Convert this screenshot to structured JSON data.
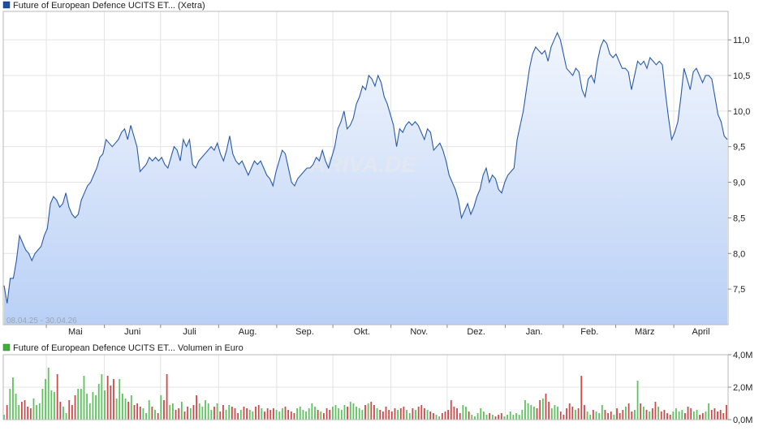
{
  "price_chart": {
    "legend": {
      "label": "Future of European Defence UCITS ET... (Xetra)",
      "color": "#1f4e9a"
    },
    "date_range": "08.04.25 - 30.04.26",
    "watermark": "ARIVA.DE",
    "y_ticks": [
      "11,0",
      "10,5",
      "10,0",
      "9,5",
      "9,0",
      "8,5",
      "8,0",
      "7,5"
    ],
    "x_ticks": [
      "Mai",
      "Juni",
      "Juli",
      "Aug.",
      "Sep.",
      "Okt.",
      "Nov.",
      "Dez.",
      "Jan.",
      "Feb.",
      "März",
      "April"
    ]
  },
  "volume_chart": {
    "legend": {
      "label": "Future of European Defence UCITS ET... Volumen in Euro",
      "color": "#3fae3f"
    },
    "y_ticks": [
      "4,0M",
      "2,0M",
      "0,0M"
    ]
  },
  "chart_data": [
    {
      "type": "area",
      "ylabel": "",
      "xlabel": "",
      "ylim": [
        7.0,
        11.4
      ],
      "x_range": [
        "2025-04-08",
        "2026-04-30"
      ],
      "grid": true,
      "series": [
        {
          "values": [
            7.55,
            7.3,
            7.65,
            7.65,
            7.9,
            8.25,
            8.15,
            8.05,
            8.0,
            7.9,
            8.0,
            8.05,
            8.1,
            8.25,
            8.35,
            8.7,
            8.8,
            8.75,
            8.65,
            8.7,
            8.85,
            8.65,
            8.55,
            8.5,
            8.55,
            8.75,
            8.85,
            8.95,
            9.0,
            9.1,
            9.2,
            9.35,
            9.4,
            9.6,
            9.55,
            9.5,
            9.55,
            9.6,
            9.7,
            9.75,
            9.6,
            9.8,
            9.65,
            9.5,
            9.15,
            9.2,
            9.25,
            9.35,
            9.3,
            9.35,
            9.3,
            9.35,
            9.25,
            9.2,
            9.35,
            9.5,
            9.45,
            9.3,
            9.6,
            9.5,
            9.6,
            9.25,
            9.2,
            9.3,
            9.35,
            9.4,
            9.45,
            9.5,
            9.45,
            9.55,
            9.4,
            9.3,
            9.45,
            9.65,
            9.4,
            9.3,
            9.25,
            9.3,
            9.2,
            9.1,
            9.2,
            9.3,
            9.25,
            9.3,
            9.2,
            9.1,
            9.05,
            8.95,
            9.15,
            9.3,
            9.45,
            9.4,
            9.2,
            9.0,
            8.95,
            9.05,
            9.1,
            9.15,
            9.2,
            9.2,
            9.25,
            9.35,
            9.3,
            9.45,
            9.3,
            9.2,
            9.35,
            9.5,
            9.75,
            9.85,
            10.0,
            9.75,
            9.8,
            9.9,
            10.1,
            10.2,
            10.35,
            10.3,
            10.5,
            10.45,
            10.35,
            10.5,
            10.4,
            10.2,
            10.1,
            9.95,
            9.8,
            9.5,
            9.75,
            9.7,
            9.8,
            9.85,
            9.8,
            9.85,
            9.8,
            9.7,
            9.6,
            9.75,
            9.7,
            9.45,
            9.5,
            9.55,
            9.45,
            9.3,
            9.1,
            9.0,
            8.9,
            8.75,
            8.5,
            8.6,
            8.7,
            8.55,
            8.65,
            8.8,
            8.9,
            9.1,
            9.2,
            9.0,
            9.1,
            9.05,
            8.9,
            8.85,
            9.0,
            9.1,
            9.15,
            9.2,
            9.6,
            9.8,
            10.0,
            10.3,
            10.6,
            10.8,
            10.9,
            10.85,
            10.8,
            10.85,
            10.7,
            10.9,
            11.0,
            11.1,
            11.0,
            10.8,
            10.6,
            10.55,
            10.5,
            10.6,
            10.55,
            10.3,
            10.2,
            10.45,
            10.5,
            10.4,
            10.7,
            10.9,
            11.0,
            10.95,
            10.8,
            10.75,
            10.8,
            10.7,
            10.6,
            10.6,
            10.55,
            10.3,
            10.5,
            10.7,
            10.65,
            10.7,
            10.6,
            10.75,
            10.7,
            10.65,
            10.7,
            10.65,
            10.25,
            9.9,
            9.6,
            9.7,
            9.85,
            10.2,
            10.6,
            10.45,
            10.3,
            10.55,
            10.6,
            10.5,
            10.4,
            10.5,
            10.5,
            10.45,
            10.2,
            9.95,
            9.85,
            9.65,
            9.6
          ],
          "color": "#2a5aa8"
        }
      ]
    },
    {
      "type": "bar",
      "ylabel": "",
      "xlabel": "",
      "ylim": [
        0,
        4000000
      ],
      "grid": true,
      "series": [
        {
          "values": [
            300000,
            900000,
            1900000,
            2600000,
            1600000,
            900000,
            1100000,
            1200000,
            800000,
            700000,
            1300000,
            900000,
            1000000,
            1900000,
            2500000,
            3200000,
            1800000,
            1700000,
            2800000,
            1100000,
            800000,
            400000,
            1200000,
            900000,
            1500000,
            1900000,
            1900000,
            2700000,
            1600000,
            1000000,
            1700000,
            1500000,
            2200000,
            2800000,
            1800000,
            2700000,
            2100000,
            2500000,
            1300000,
            2500000,
            1600000,
            1300000,
            1100000,
            1500000,
            900000,
            1000000,
            800000,
            700000,
            400000,
            1200000,
            800000,
            600000,
            400000,
            1500000,
            1200000,
            2800000,
            900000,
            1000000,
            600000,
            700000,
            1100000,
            500000,
            800000,
            700000,
            900000,
            1500000,
            1000000,
            800000,
            1200000,
            1000000,
            600000,
            800000,
            1000000,
            500000,
            900000,
            600000,
            900000,
            800000,
            700000,
            400000,
            600000,
            800000,
            700000,
            600000,
            500000,
            800000,
            900000,
            700000,
            500000,
            700000,
            600000,
            700000,
            600000,
            500000,
            700000,
            800000,
            600000,
            500000,
            400000,
            700000,
            800000,
            600000,
            500000,
            700000,
            1000000,
            800000,
            600000,
            500000,
            400000,
            700000,
            600000,
            800000,
            900000,
            700000,
            600000,
            900000,
            800000,
            1100000,
            1000000,
            800000,
            700000,
            600000,
            900000,
            1000000,
            1100000,
            900000,
            700000,
            600000,
            500000,
            800000,
            600000,
            500000,
            700000,
            600000,
            700000,
            800000,
            600000,
            400000,
            700000,
            600000,
            800000,
            900000,
            700000,
            600000,
            500000,
            400000,
            300000,
            200000,
            400000,
            500000,
            600000,
            1200000,
            800000,
            700000,
            400000,
            900000,
            800000,
            500000,
            300000,
            200000,
            400000,
            700000,
            500000,
            300000,
            400000,
            300000,
            200000,
            300000,
            400000,
            200000,
            300000,
            500000,
            300000,
            400000,
            300000,
            600000,
            1200000,
            1000000,
            900000,
            800000,
            700000,
            1200000,
            1300000,
            1600000,
            1100000,
            700000,
            900000,
            800000,
            500000,
            300000,
            700000,
            1000000,
            800000,
            600000,
            700000,
            2700000,
            900000,
            500000,
            300000,
            600000,
            500000,
            400000,
            900000,
            600000,
            400000,
            500000,
            300000,
            700000,
            400000,
            600000,
            800000,
            1000000,
            500000,
            600000,
            2400000,
            1000000,
            800000,
            600000,
            500000,
            700000,
            1100000,
            800000,
            500000,
            600000,
            400000,
            300000,
            500000,
            700000,
            500000,
            600000,
            400000,
            800000,
            700000,
            500000,
            600000,
            300000,
            400000,
            500000,
            1000000,
            600000,
            700000,
            500000,
            600000,
            400000,
            900000
          ]
        }
      ]
    }
  ]
}
